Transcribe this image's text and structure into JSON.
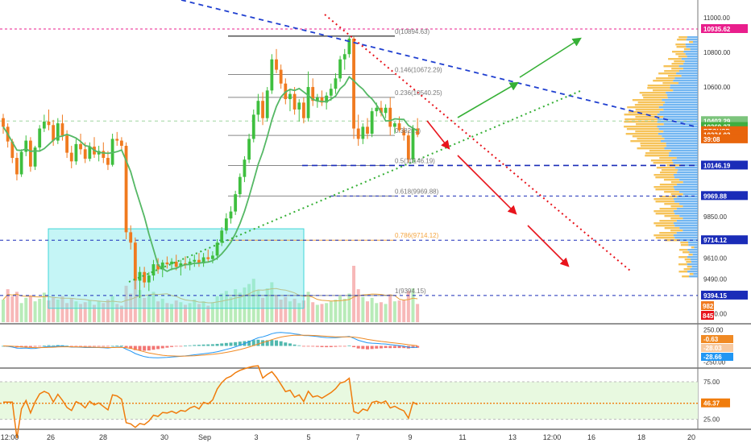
{
  "chart_data": {
    "type": "candlestick",
    "symbol": "BTCUSD",
    "colors": {
      "up": "#3fbf3f",
      "down": "#f07a1f",
      "ma": "#55b865",
      "downtrend": "#1f3fd0",
      "uptrend": "#36b036",
      "red_trend": "#e8141c",
      "fib_top": "#e91e8c",
      "box": "#7fe9ea",
      "dashed_level": "#1a2cb8",
      "volume_up": "#b8ebb8",
      "volume_down": "#f7b8b8",
      "macd": "#2196f3",
      "signal": "#f08a24",
      "rsi": "#f07c0c",
      "rsi_band": "#e8f9e0"
    },
    "price_axis": {
      "ticks": [
        "11000.00",
        "10800.00",
        "10600.00",
        "10403.29",
        "10369.27",
        "10324.03",
        "10146.19",
        "9969.88",
        "9850.00",
        "9714.12",
        "9610.00",
        "9490.00",
        "9394.15",
        "9290.00"
      ],
      "ylim": [
        9240,
        11080
      ]
    },
    "price_badges": [
      {
        "label": "10935.62",
        "value": 10935.62,
        "color": "#e91e8c"
      },
      {
        "label": "10403.29",
        "value": 10403.29,
        "color": "#7cc47c"
      },
      {
        "label": "10369.27",
        "value": 10369.27,
        "color": "#3fae3f"
      },
      {
        "label": "BTCUSD",
        "value": 10345,
        "color": "#e8650c"
      },
      {
        "label": "10324.03",
        "value": 10324.03,
        "color": "#e8650c"
      },
      {
        "label": "39:08",
        "value": 10298,
        "color": "#e8650c"
      },
      {
        "label": "10146.19",
        "value": 10146.19,
        "color": "#1a2cb8"
      },
      {
        "label": "9969.88",
        "value": 9969.88,
        "color": "#1a2cb8"
      },
      {
        "label": "9714.12",
        "value": 9714.12,
        "color": "#1a2cb8"
      },
      {
        "label": "9394.15",
        "value": 9394.15,
        "color": "#1a2cb8"
      }
    ],
    "fib_labels": [
      {
        "label": "0(10894.63)",
        "value": 10894.63
      },
      {
        "label": "0.146(10672.29)",
        "value": 10672.29
      },
      {
        "label": "0.236(10540.25)",
        "value": 10540.25
      },
      {
        "label": "0.382(...)",
        "value": 10320
      },
      {
        "label": "0.5(10146.19)",
        "value": 10146.19
      },
      {
        "label": "0.618(9969.88)",
        "value": 9969.88
      },
      {
        "label": "0.786(9714.12)",
        "value": 9714.12
      },
      {
        "label": "1(9394.15)",
        "value": 9394.15
      }
    ],
    "x_labels": [
      "12:00",
      "26",
      "28",
      "30",
      "Sep",
      "3",
      "5",
      "7",
      "9",
      "11",
      "13",
      "12:00",
      "16",
      "18",
      "20"
    ],
    "candles": [
      [
        10420,
        10445,
        10330,
        10370
      ],
      [
        10370,
        10390,
        10250,
        10285
      ],
      [
        10285,
        10300,
        10160,
        10190
      ],
      [
        10190,
        10220,
        10060,
        10095
      ],
      [
        10095,
        10240,
        10080,
        10225
      ],
      [
        10225,
        10320,
        10200,
        10290
      ],
      [
        10290,
        10310,
        10110,
        10140
      ],
      [
        10140,
        10260,
        10120,
        10250
      ],
      [
        10250,
        10380,
        10230,
        10360
      ],
      [
        10360,
        10440,
        10340,
        10400
      ],
      [
        10400,
        10470,
        10350,
        10380
      ],
      [
        10380,
        10410,
        10260,
        10290
      ],
      [
        10290,
        10420,
        10270,
        10390
      ],
      [
        10390,
        10440,
        10290,
        10320
      ],
      [
        10320,
        10350,
        10190,
        10220
      ],
      [
        10220,
        10260,
        10130,
        10170
      ],
      [
        10170,
        10300,
        10150,
        10270
      ],
      [
        10270,
        10330,
        10210,
        10240
      ],
      [
        10240,
        10280,
        10160,
        10185
      ],
      [
        10185,
        10280,
        10170,
        10255
      ],
      [
        10255,
        10310,
        10190,
        10210
      ],
      [
        10210,
        10260,
        10170,
        10230
      ],
      [
        10230,
        10280,
        10160,
        10190
      ],
      [
        10190,
        10230,
        10120,
        10150
      ],
      [
        10150,
        10330,
        10140,
        10300
      ],
      [
        10300,
        10340,
        10260,
        10290
      ],
      [
        10290,
        10310,
        10230,
        10260
      ],
      [
        10260,
        10280,
        9720,
        9760
      ],
      [
        9760,
        9800,
        9660,
        9700
      ],
      [
        9700,
        9730,
        9430,
        9480
      ],
      [
        9480,
        9560,
        9380,
        9530
      ],
      [
        9530,
        9560,
        9440,
        9470
      ],
      [
        9470,
        9530,
        9420,
        9510
      ],
      [
        9510,
        9600,
        9480,
        9575
      ],
      [
        9575,
        9610,
        9520,
        9545
      ],
      [
        9545,
        9600,
        9500,
        9585
      ],
      [
        9585,
        9620,
        9550,
        9575
      ],
      [
        9575,
        9610,
        9540,
        9590
      ],
      [
        9590,
        9630,
        9540,
        9560
      ],
      [
        9560,
        9600,
        9510,
        9580
      ],
      [
        9580,
        9620,
        9550,
        9570
      ],
      [
        9570,
        9610,
        9540,
        9590
      ],
      [
        9590,
        9630,
        9560,
        9600
      ],
      [
        9600,
        9640,
        9560,
        9580
      ],
      [
        9580,
        9640,
        9560,
        9615
      ],
      [
        9615,
        9660,
        9590,
        9605
      ],
      [
        9605,
        9650,
        9580,
        9625
      ],
      [
        9625,
        9720,
        9600,
        9700
      ],
      [
        9700,
        9790,
        9680,
        9770
      ],
      [
        9770,
        9870,
        9750,
        9840
      ],
      [
        9840,
        9910,
        9810,
        9880
      ],
      [
        9880,
        10000,
        9860,
        9980
      ],
      [
        9980,
        10100,
        9960,
        10080
      ],
      [
        10080,
        10200,
        10050,
        10180
      ],
      [
        10180,
        10330,
        10160,
        10300
      ],
      [
        10300,
        10470,
        10280,
        10440
      ],
      [
        10440,
        10560,
        10400,
        10520
      ],
      [
        10520,
        10570,
        10380,
        10420
      ],
      [
        10420,
        10600,
        10400,
        10580
      ],
      [
        10580,
        10790,
        10560,
        10760
      ],
      [
        10760,
        10820,
        10680,
        10700
      ],
      [
        10700,
        10730,
        10590,
        10620
      ],
      [
        10620,
        10650,
        10500,
        10530
      ],
      [
        10530,
        10590,
        10460,
        10560
      ],
      [
        10560,
        10600,
        10440,
        10470
      ],
      [
        10470,
        10530,
        10400,
        10510
      ],
      [
        10510,
        10540,
        10390,
        10420
      ],
      [
        10420,
        10690,
        10400,
        10600
      ],
      [
        10600,
        10650,
        10490,
        10520
      ],
      [
        10520,
        10560,
        10480,
        10540
      ],
      [
        10540,
        10580,
        10490,
        10510
      ],
      [
        10510,
        10570,
        10470,
        10550
      ],
      [
        10550,
        10620,
        10520,
        10590
      ],
      [
        10590,
        10680,
        10560,
        10650
      ],
      [
        10650,
        10780,
        10630,
        10760
      ],
      [
        10760,
        10820,
        10700,
        10790
      ],
      [
        10790,
        10895,
        10770,
        10880
      ],
      [
        10880,
        10890,
        10300,
        10360
      ],
      [
        10360,
        10440,
        10260,
        10300
      ],
      [
        10300,
        10390,
        10270,
        10370
      ],
      [
        10370,
        10420,
        10300,
        10330
      ],
      [
        10330,
        10480,
        10310,
        10460
      ],
      [
        10460,
        10510,
        10430,
        10480
      ],
      [
        10480,
        10520,
        10430,
        10450
      ],
      [
        10450,
        10500,
        10420,
        10480
      ],
      [
        10480,
        10540,
        10320,
        10370
      ],
      [
        10370,
        10400,
        10330,
        10390
      ],
      [
        10390,
        10430,
        10340,
        10350
      ],
      [
        10350,
        10370,
        10290,
        10320
      ],
      [
        10320,
        10350,
        10160,
        10180
      ],
      [
        10180,
        10380,
        10160,
        10360
      ],
      [
        10360,
        10420,
        10310,
        10324
      ]
    ],
    "volumes": [
      [
        26,
        "up"
      ],
      [
        38,
        "down"
      ],
      [
        30,
        "down"
      ],
      [
        35,
        "down"
      ],
      [
        22,
        "up"
      ],
      [
        28,
        "up"
      ],
      [
        31,
        "down"
      ],
      [
        24,
        "up"
      ],
      [
        27,
        "up"
      ],
      [
        34,
        "up"
      ],
      [
        25,
        "down"
      ],
      [
        29,
        "down"
      ],
      [
        26,
        "up"
      ],
      [
        30,
        "down"
      ],
      [
        22,
        "down"
      ],
      [
        27,
        "down"
      ],
      [
        24,
        "up"
      ],
      [
        21,
        "down"
      ],
      [
        23,
        "down"
      ],
      [
        25,
        "up"
      ],
      [
        20,
        "down"
      ],
      [
        24,
        "up"
      ],
      [
        22,
        "down"
      ],
      [
        26,
        "down"
      ],
      [
        30,
        "up"
      ],
      [
        21,
        "down"
      ],
      [
        19,
        "down"
      ],
      [
        42,
        "down"
      ],
      [
        33,
        "down"
      ],
      [
        48,
        "down"
      ],
      [
        37,
        "up"
      ],
      [
        28,
        "down"
      ],
      [
        31,
        "up"
      ],
      [
        35,
        "up"
      ],
      [
        24,
        "down"
      ],
      [
        27,
        "up"
      ],
      [
        22,
        "down"
      ],
      [
        21,
        "up"
      ],
      [
        25,
        "down"
      ],
      [
        23,
        "up"
      ],
      [
        20,
        "down"
      ],
      [
        22,
        "up"
      ],
      [
        26,
        "up"
      ],
      [
        21,
        "down"
      ],
      [
        24,
        "up"
      ],
      [
        19,
        "down"
      ],
      [
        23,
        "up"
      ],
      [
        30,
        "up"
      ],
      [
        33,
        "up"
      ],
      [
        36,
        "up"
      ],
      [
        29,
        "up"
      ],
      [
        38,
        "up"
      ],
      [
        34,
        "up"
      ],
      [
        40,
        "up"
      ],
      [
        44,
        "up"
      ],
      [
        50,
        "up"
      ],
      [
        37,
        "up"
      ],
      [
        28,
        "down"
      ],
      [
        39,
        "up"
      ],
      [
        46,
        "up"
      ],
      [
        31,
        "down"
      ],
      [
        26,
        "down"
      ],
      [
        29,
        "down"
      ],
      [
        24,
        "up"
      ],
      [
        27,
        "down"
      ],
      [
        22,
        "up"
      ],
      [
        25,
        "down"
      ],
      [
        35,
        "up"
      ],
      [
        23,
        "down"
      ],
      [
        20,
        "up"
      ],
      [
        21,
        "down"
      ],
      [
        22,
        "up"
      ],
      [
        24,
        "up"
      ],
      [
        26,
        "up"
      ],
      [
        30,
        "up"
      ],
      [
        27,
        "up"
      ],
      [
        33,
        "up"
      ],
      [
        65,
        "down"
      ],
      [
        38,
        "down"
      ],
      [
        29,
        "up"
      ],
      [
        24,
        "down"
      ],
      [
        28,
        "up"
      ],
      [
        22,
        "up"
      ],
      [
        23,
        "down"
      ],
      [
        21,
        "up"
      ],
      [
        32,
        "down"
      ],
      [
        24,
        "up"
      ],
      [
        25,
        "down"
      ],
      [
        26,
        "down"
      ],
      [
        36,
        "down"
      ],
      [
        39,
        "up"
      ],
      [
        21,
        "down"
      ]
    ],
    "volume_badges": [
      {
        "label": "982",
        "color": "#f07a1f"
      },
      {
        "label": "845",
        "color": "#e8141c"
      }
    ],
    "macd": {
      "axis_ticks": [
        "250.00",
        "-250.00"
      ],
      "badges": [
        {
          "label": "-0.63",
          "value": -0.63,
          "color": "#f08a24"
        },
        {
          "label": "-28.03",
          "value": -28.03,
          "color": "#f7c9a0"
        },
        {
          "label": "-28.66",
          "value": -28.66,
          "color": "#2196f3"
        }
      ],
      "ylim": [
        -320,
        320
      ]
    },
    "rsi": {
      "axis_ticks": [
        "75.00",
        "25.00"
      ],
      "badge": {
        "label": "46.37",
        "value": 46.37,
        "color": "#f07c0c"
      },
      "ylim": [
        15,
        90
      ]
    }
  }
}
